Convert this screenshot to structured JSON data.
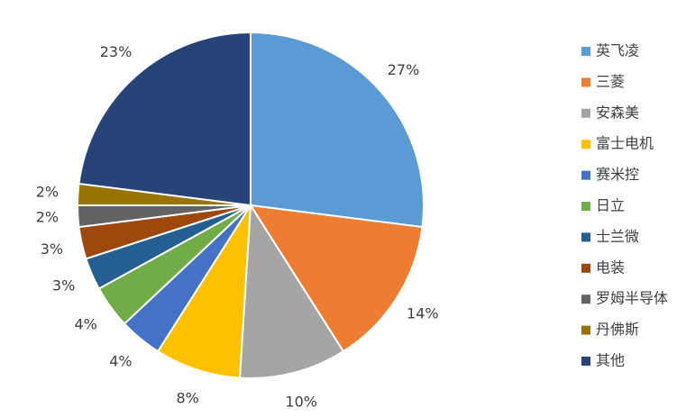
{
  "chart_data": {
    "type": "pie",
    "categories": [
      "英飞凌",
      "三菱",
      "安森美",
      "富士电机",
      "赛米控",
      "日立",
      "士兰微",
      "电装",
      "罗姆半导体",
      "丹佛斯",
      "其他"
    ],
    "values": [
      27,
      14,
      10,
      8,
      4,
      4,
      3,
      3,
      2,
      2,
      23
    ],
    "value_labels": [
      "27%",
      "14%",
      "10%",
      "8%",
      "4%",
      "4%",
      "3%",
      "3%",
      "2%",
      "2%",
      "23%"
    ],
    "colors": [
      "#5b9bd5",
      "#ed7d31",
      "#a5a5a5",
      "#ffc000",
      "#4472c4",
      "#70ad47",
      "#255e91",
      "#9e480e",
      "#636363",
      "#997300",
      "#264478"
    ],
    "legend": "right"
  }
}
